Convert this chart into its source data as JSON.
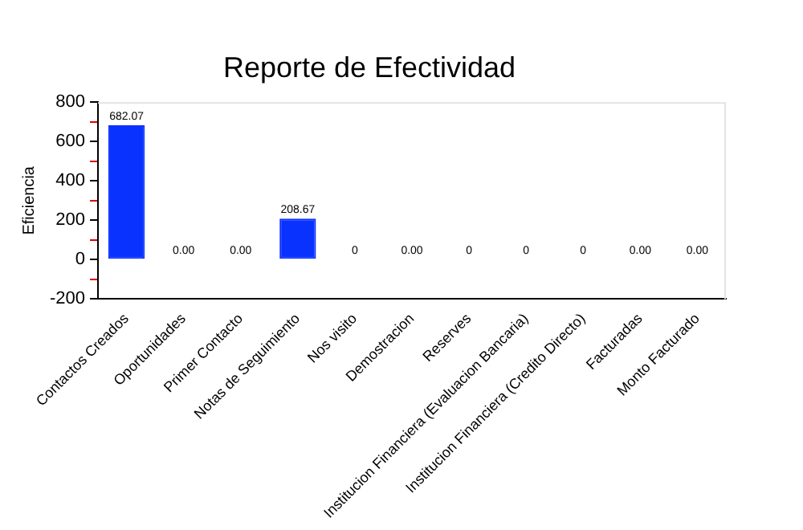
{
  "chart_data": {
    "type": "bar",
    "title": "Reporte de Efectividad",
    "ylabel": "Eficiencia",
    "categories": [
      "Contactos Creados",
      "Oportunidades",
      "Primer Contacto",
      "Notas de Seguimiento",
      "Nos visito",
      "Demostracion",
      "Reserves",
      "Institucion Financiera (Evaluacion Bancaria)",
      "Institucion Financiera (Credito Directo)",
      "Facturadas",
      "Monto Facturado"
    ],
    "values": [
      682.07,
      0,
      0,
      208.67,
      0,
      0,
      0,
      0,
      0,
      0,
      0
    ],
    "value_labels": [
      "682.07",
      "0.00",
      "0.00",
      "208.67",
      "0",
      "0.00",
      "0",
      "0",
      "0",
      "0.00",
      "0.00"
    ],
    "colors": [
      "#0a32ff",
      "#ff2020",
      "#ff2020",
      "#0a32ff",
      "#ff2020",
      "#ff2020",
      "#ff2020",
      "#ff2020",
      "#ff2020",
      "#ff2020",
      "#ff2020"
    ],
    "ylim": [
      -200,
      800
    ],
    "yticks": [
      -200,
      {
        "value": -100,
        "label": null
      },
      0,
      {
        "value": 100,
        "label": null
      },
      200,
      {
        "value": 300,
        "label": null
      },
      400,
      {
        "value": 500,
        "label": null
      },
      600,
      {
        "value": 700,
        "label": null
      },
      800
    ],
    "grid": false,
    "legend": false
  }
}
